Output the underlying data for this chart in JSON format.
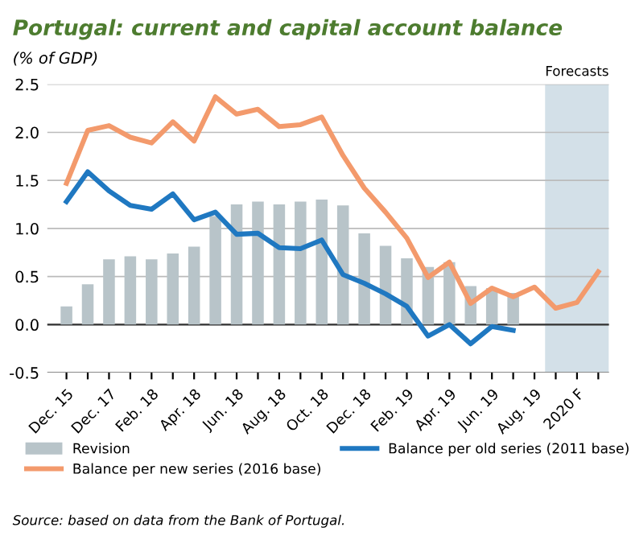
{
  "chart_data": {
    "type": "bar",
    "title": "Portugal: current and capital account balance",
    "subtitle": "(% of GDP)",
    "categories": [
      "Dec. 15",
      null,
      "Dec. 17",
      null,
      "Feb. 18",
      null,
      "Apr. 18",
      null,
      "Jun. 18",
      null,
      "Aug. 18",
      null,
      "Oct. 18",
      null,
      "Dec. 18",
      null,
      "Feb. 19",
      null,
      "Apr. 19",
      null,
      "Jun. 19",
      null,
      "Aug. 19",
      null,
      "2020 F",
      null
    ],
    "series": [
      {
        "name": "Revision",
        "color": "#b8c4c9",
        "values": [
          0.19,
          0.42,
          0.68,
          0.71,
          0.68,
          0.74,
          0.81,
          1.13,
          1.25,
          1.28,
          1.25,
          1.28,
          1.3,
          1.24,
          0.95,
          0.82,
          0.69,
          0.6,
          0.65,
          0.4,
          0.38,
          0.33,
          null,
          null,
          null,
          null
        ]
      },
      {
        "name": "Balance per new series (2016 base)",
        "type": "line",
        "color": "#f39a6c",
        "values": [
          1.47,
          2.02,
          2.07,
          1.95,
          1.89,
          2.11,
          1.91,
          2.37,
          2.19,
          2.24,
          2.06,
          2.08,
          2.16,
          1.76,
          1.42,
          1.17,
          0.9,
          0.49,
          0.65,
          0.22,
          0.38,
          0.29,
          0.39,
          0.17,
          0.23,
          0.55
        ]
      },
      {
        "name": "Balance per old series (2011 base)",
        "type": "line",
        "color": "#1f78c1",
        "values": [
          1.28,
          1.59,
          1.39,
          1.24,
          1.2,
          1.36,
          1.09,
          1.17,
          0.94,
          0.95,
          0.8,
          0.79,
          0.88,
          0.52,
          0.43,
          0.32,
          0.19,
          -0.12,
          0.0,
          -0.2,
          -0.02,
          -0.06,
          null,
          null,
          null,
          null
        ]
      }
    ],
    "ylim": [
      -0.5,
      2.5
    ],
    "yticks": [
      {
        "value": -0.5,
        "label": "-0.5"
      },
      {
        "value": 0,
        "label": "0.0"
      },
      {
        "value": 0.5,
        "label": "0.5"
      },
      {
        "value": 1,
        "label": "1.0"
      },
      {
        "value": 1.5,
        "label": "1.5"
      },
      {
        "value": 2,
        "label": "2.0"
      },
      {
        "value": 2.5,
        "label": "2.5"
      }
    ],
    "grid": "y",
    "legend": "bottom",
    "line_style": "solid",
    "annotations": [
      "Forecasts",
      "Source: based on data from the Bank of Portugal."
    ]
  }
}
